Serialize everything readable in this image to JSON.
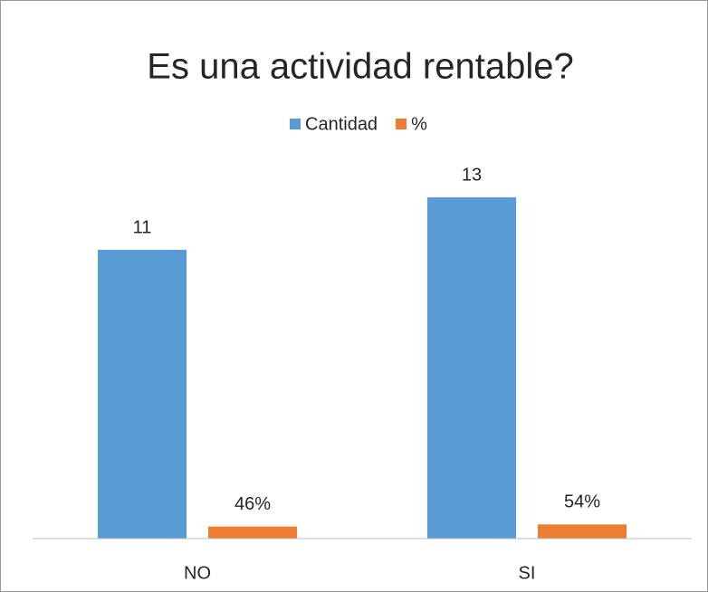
{
  "chart_data": {
    "type": "bar",
    "title": "Es una actividad rentable?",
    "categories": [
      "NO",
      "SI"
    ],
    "series": [
      {
        "name": "Cantidad",
        "color": "#5b9bd5",
        "values": [
          11,
          13
        ]
      },
      {
        "name": "%",
        "color": "#ed7d31",
        "values": [
          0.46,
          0.54
        ],
        "value_labels": [
          "46%",
          "54%"
        ]
      }
    ],
    "ylim": [
      0,
      14
    ],
    "legend": "top"
  }
}
